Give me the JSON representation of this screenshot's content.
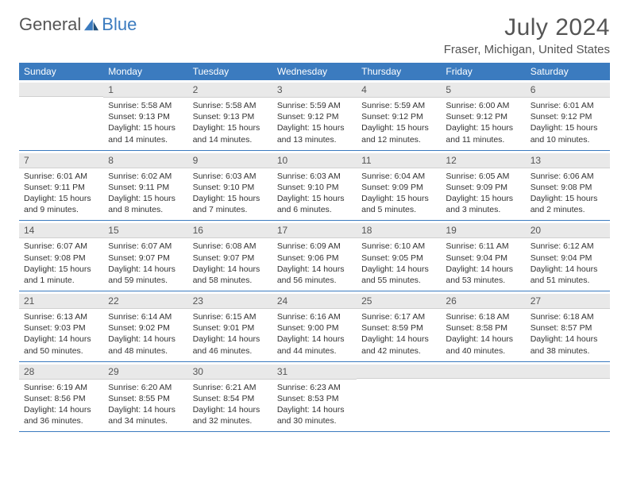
{
  "brand": {
    "part1": "General",
    "part2": "Blue"
  },
  "header": {
    "title": "July 2024",
    "location": "Fraser, Michigan, United States"
  },
  "colors": {
    "header_bg": "#3b7bbf",
    "header_text": "#ffffff",
    "daynum_bg": "#e9e9e9",
    "border": "#3b7bbf",
    "text": "#333333",
    "muted": "#555555"
  },
  "day_names": [
    "Sunday",
    "Monday",
    "Tuesday",
    "Wednesday",
    "Thursday",
    "Friday",
    "Saturday"
  ],
  "weeks": [
    [
      {
        "n": "",
        "sr": "",
        "ss": "",
        "dl1": "",
        "dl2": ""
      },
      {
        "n": "1",
        "sr": "Sunrise: 5:58 AM",
        "ss": "Sunset: 9:13 PM",
        "dl1": "Daylight: 15 hours",
        "dl2": "and 14 minutes."
      },
      {
        "n": "2",
        "sr": "Sunrise: 5:58 AM",
        "ss": "Sunset: 9:13 PM",
        "dl1": "Daylight: 15 hours",
        "dl2": "and 14 minutes."
      },
      {
        "n": "3",
        "sr": "Sunrise: 5:59 AM",
        "ss": "Sunset: 9:12 PM",
        "dl1": "Daylight: 15 hours",
        "dl2": "and 13 minutes."
      },
      {
        "n": "4",
        "sr": "Sunrise: 5:59 AM",
        "ss": "Sunset: 9:12 PM",
        "dl1": "Daylight: 15 hours",
        "dl2": "and 12 minutes."
      },
      {
        "n": "5",
        "sr": "Sunrise: 6:00 AM",
        "ss": "Sunset: 9:12 PM",
        "dl1": "Daylight: 15 hours",
        "dl2": "and 11 minutes."
      },
      {
        "n": "6",
        "sr": "Sunrise: 6:01 AM",
        "ss": "Sunset: 9:12 PM",
        "dl1": "Daylight: 15 hours",
        "dl2": "and 10 minutes."
      }
    ],
    [
      {
        "n": "7",
        "sr": "Sunrise: 6:01 AM",
        "ss": "Sunset: 9:11 PM",
        "dl1": "Daylight: 15 hours",
        "dl2": "and 9 minutes."
      },
      {
        "n": "8",
        "sr": "Sunrise: 6:02 AM",
        "ss": "Sunset: 9:11 PM",
        "dl1": "Daylight: 15 hours",
        "dl2": "and 8 minutes."
      },
      {
        "n": "9",
        "sr": "Sunrise: 6:03 AM",
        "ss": "Sunset: 9:10 PM",
        "dl1": "Daylight: 15 hours",
        "dl2": "and 7 minutes."
      },
      {
        "n": "10",
        "sr": "Sunrise: 6:03 AM",
        "ss": "Sunset: 9:10 PM",
        "dl1": "Daylight: 15 hours",
        "dl2": "and 6 minutes."
      },
      {
        "n": "11",
        "sr": "Sunrise: 6:04 AM",
        "ss": "Sunset: 9:09 PM",
        "dl1": "Daylight: 15 hours",
        "dl2": "and 5 minutes."
      },
      {
        "n": "12",
        "sr": "Sunrise: 6:05 AM",
        "ss": "Sunset: 9:09 PM",
        "dl1": "Daylight: 15 hours",
        "dl2": "and 3 minutes."
      },
      {
        "n": "13",
        "sr": "Sunrise: 6:06 AM",
        "ss": "Sunset: 9:08 PM",
        "dl1": "Daylight: 15 hours",
        "dl2": "and 2 minutes."
      }
    ],
    [
      {
        "n": "14",
        "sr": "Sunrise: 6:07 AM",
        "ss": "Sunset: 9:08 PM",
        "dl1": "Daylight: 15 hours",
        "dl2": "and 1 minute."
      },
      {
        "n": "15",
        "sr": "Sunrise: 6:07 AM",
        "ss": "Sunset: 9:07 PM",
        "dl1": "Daylight: 14 hours",
        "dl2": "and 59 minutes."
      },
      {
        "n": "16",
        "sr": "Sunrise: 6:08 AM",
        "ss": "Sunset: 9:07 PM",
        "dl1": "Daylight: 14 hours",
        "dl2": "and 58 minutes."
      },
      {
        "n": "17",
        "sr": "Sunrise: 6:09 AM",
        "ss": "Sunset: 9:06 PM",
        "dl1": "Daylight: 14 hours",
        "dl2": "and 56 minutes."
      },
      {
        "n": "18",
        "sr": "Sunrise: 6:10 AM",
        "ss": "Sunset: 9:05 PM",
        "dl1": "Daylight: 14 hours",
        "dl2": "and 55 minutes."
      },
      {
        "n": "19",
        "sr": "Sunrise: 6:11 AM",
        "ss": "Sunset: 9:04 PM",
        "dl1": "Daylight: 14 hours",
        "dl2": "and 53 minutes."
      },
      {
        "n": "20",
        "sr": "Sunrise: 6:12 AM",
        "ss": "Sunset: 9:04 PM",
        "dl1": "Daylight: 14 hours",
        "dl2": "and 51 minutes."
      }
    ],
    [
      {
        "n": "21",
        "sr": "Sunrise: 6:13 AM",
        "ss": "Sunset: 9:03 PM",
        "dl1": "Daylight: 14 hours",
        "dl2": "and 50 minutes."
      },
      {
        "n": "22",
        "sr": "Sunrise: 6:14 AM",
        "ss": "Sunset: 9:02 PM",
        "dl1": "Daylight: 14 hours",
        "dl2": "and 48 minutes."
      },
      {
        "n": "23",
        "sr": "Sunrise: 6:15 AM",
        "ss": "Sunset: 9:01 PM",
        "dl1": "Daylight: 14 hours",
        "dl2": "and 46 minutes."
      },
      {
        "n": "24",
        "sr": "Sunrise: 6:16 AM",
        "ss": "Sunset: 9:00 PM",
        "dl1": "Daylight: 14 hours",
        "dl2": "and 44 minutes."
      },
      {
        "n": "25",
        "sr": "Sunrise: 6:17 AM",
        "ss": "Sunset: 8:59 PM",
        "dl1": "Daylight: 14 hours",
        "dl2": "and 42 minutes."
      },
      {
        "n": "26",
        "sr": "Sunrise: 6:18 AM",
        "ss": "Sunset: 8:58 PM",
        "dl1": "Daylight: 14 hours",
        "dl2": "and 40 minutes."
      },
      {
        "n": "27",
        "sr": "Sunrise: 6:18 AM",
        "ss": "Sunset: 8:57 PM",
        "dl1": "Daylight: 14 hours",
        "dl2": "and 38 minutes."
      }
    ],
    [
      {
        "n": "28",
        "sr": "Sunrise: 6:19 AM",
        "ss": "Sunset: 8:56 PM",
        "dl1": "Daylight: 14 hours",
        "dl2": "and 36 minutes."
      },
      {
        "n": "29",
        "sr": "Sunrise: 6:20 AM",
        "ss": "Sunset: 8:55 PM",
        "dl1": "Daylight: 14 hours",
        "dl2": "and 34 minutes."
      },
      {
        "n": "30",
        "sr": "Sunrise: 6:21 AM",
        "ss": "Sunset: 8:54 PM",
        "dl1": "Daylight: 14 hours",
        "dl2": "and 32 minutes."
      },
      {
        "n": "31",
        "sr": "Sunrise: 6:23 AM",
        "ss": "Sunset: 8:53 PM",
        "dl1": "Daylight: 14 hours",
        "dl2": "and 30 minutes."
      },
      {
        "n": "",
        "sr": "",
        "ss": "",
        "dl1": "",
        "dl2": ""
      },
      {
        "n": "",
        "sr": "",
        "ss": "",
        "dl1": "",
        "dl2": ""
      },
      {
        "n": "",
        "sr": "",
        "ss": "",
        "dl1": "",
        "dl2": ""
      }
    ]
  ]
}
